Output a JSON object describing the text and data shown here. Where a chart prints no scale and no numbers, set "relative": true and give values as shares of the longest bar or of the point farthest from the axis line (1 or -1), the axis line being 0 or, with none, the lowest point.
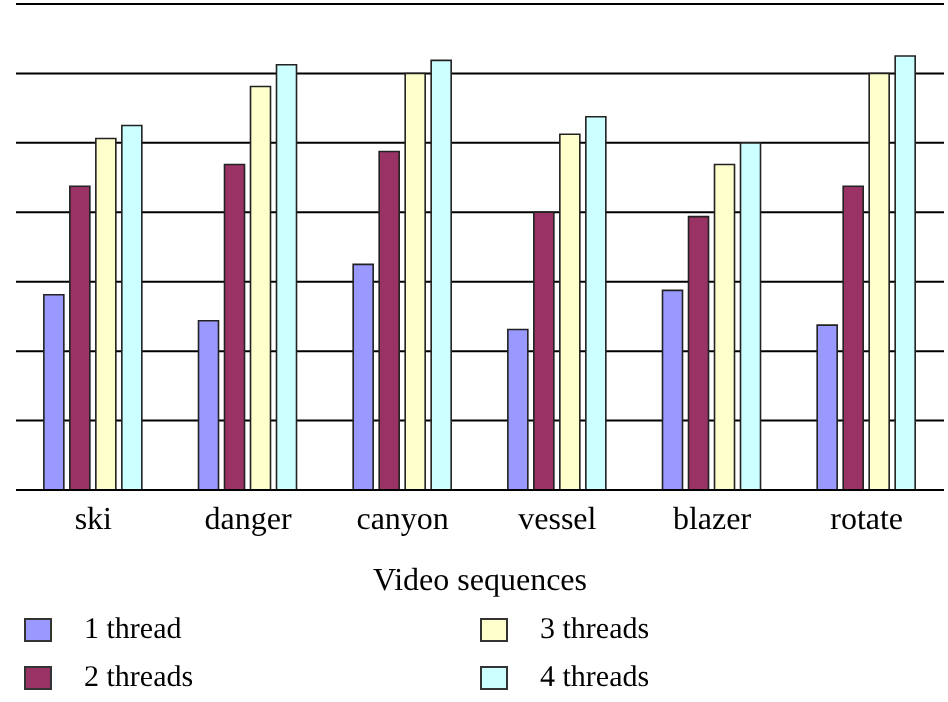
{
  "chart_data": {
    "type": "bar",
    "xlabel": "Video sequences",
    "relative": true,
    "grid": "y",
    "legend": "bottom",
    "categories": [
      "ski",
      "danger",
      "canyon",
      "vessel",
      "blazer",
      "rotate"
    ],
    "series": [
      {
        "name": "1 thread",
        "color": "#9999ff",
        "values": [
          0.45,
          0.39,
          0.52,
          0.37,
          0.46,
          0.38
        ]
      },
      {
        "name": "2 threads",
        "color": "#993366",
        "values": [
          0.7,
          0.75,
          0.78,
          0.64,
          0.63,
          0.7
        ]
      },
      {
        "name": "3 threads",
        "color": "#ffffcc",
        "values": [
          0.81,
          0.93,
          0.96,
          0.82,
          0.75,
          0.96
        ]
      },
      {
        "name": "4 threads",
        "color": "#ccffff",
        "values": [
          0.84,
          0.98,
          0.99,
          0.86,
          0.8,
          1
        ]
      }
    ]
  }
}
